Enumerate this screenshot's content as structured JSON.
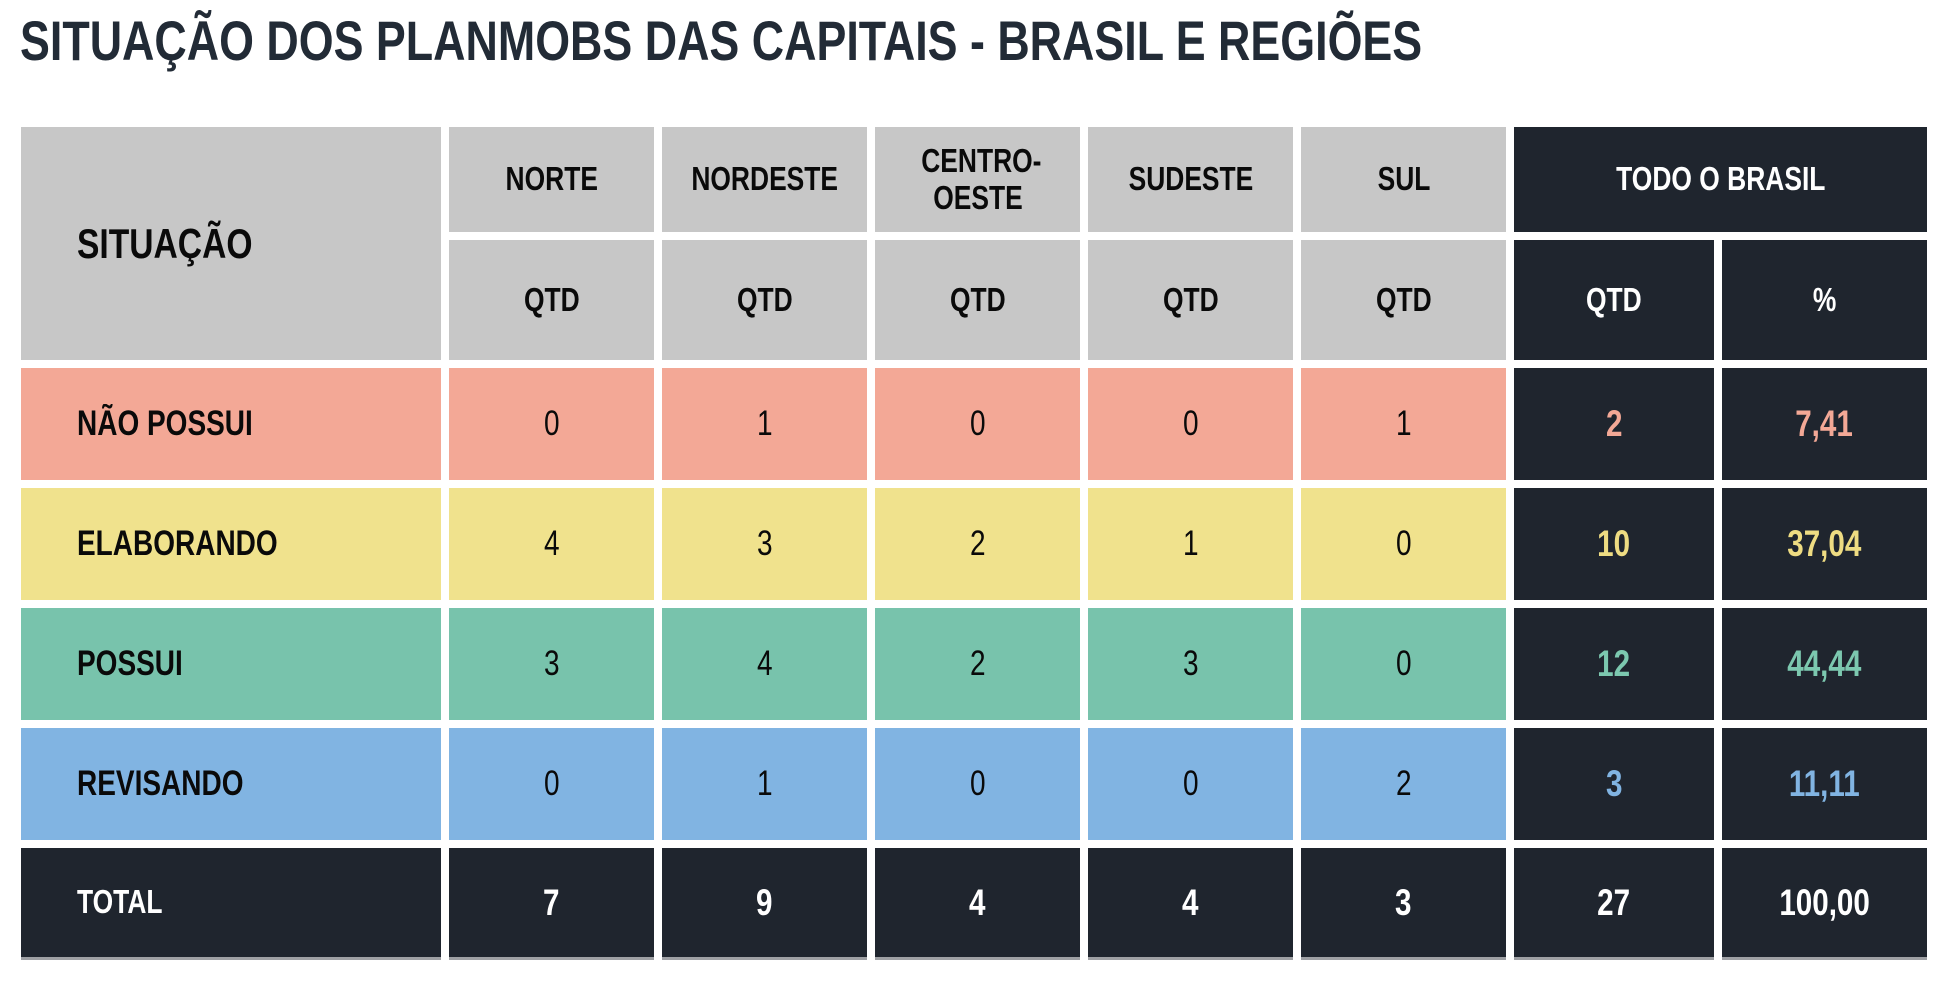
{
  "title": "SITUAÇÃO DOS PLANMOBS DAS CAPITAIS - BRASIL E REGIÕES",
  "colors": {
    "header_gray": "#c7c7c7",
    "dark_navy": "#1f252e",
    "salmon": "#f3a896",
    "yellow": "#f0e28d",
    "green": "#78c3ac",
    "blue": "#81b4e2",
    "title_text": "#222b36",
    "white": "#ffffff"
  },
  "table": {
    "situacao_header": "SITUAÇÃO",
    "region_headers": [
      "NORTE",
      "NORDESTE",
      "CENTRO-OESTE",
      "SUDESTE",
      "SUL"
    ],
    "brasil_header": "TODO O BRASIL",
    "qtd_label": "QTD",
    "pct_label": "%",
    "rows": [
      {
        "label": "NÃO POSSUI",
        "values": [
          0,
          1,
          0,
          0,
          1
        ],
        "qtd": 2,
        "pct": "7,41"
      },
      {
        "label": "ELABORANDO",
        "values": [
          4,
          3,
          2,
          1,
          0
        ],
        "qtd": 10,
        "pct": "37,04"
      },
      {
        "label": "POSSUI",
        "values": [
          3,
          4,
          2,
          3,
          0
        ],
        "qtd": 12,
        "pct": "44,44"
      },
      {
        "label": "REVISANDO",
        "values": [
          0,
          1,
          0,
          0,
          2
        ],
        "qtd": 3,
        "pct": "11,11"
      }
    ],
    "total": {
      "label": "TOTAL",
      "values": [
        7,
        9,
        4,
        4,
        3
      ],
      "qtd": 27,
      "pct": "100,00"
    }
  },
  "chart_data": {
    "type": "table",
    "title": "SITUAÇÃO DOS PLANMOBS DAS CAPITAIS - BRASIL E REGIÕES",
    "columns": [
      "SITUAÇÃO",
      "NORTE QTD",
      "NORDESTE QTD",
      "CENTRO-OESTE QTD",
      "SUDESTE QTD",
      "SUL QTD",
      "TODO O BRASIL QTD",
      "TODO O BRASIL %"
    ],
    "rows": [
      [
        "NÃO POSSUI",
        0,
        1,
        0,
        0,
        1,
        2,
        "7,41"
      ],
      [
        "ELABORANDO",
        4,
        3,
        2,
        1,
        0,
        10,
        "37,04"
      ],
      [
        "POSSUI",
        3,
        4,
        2,
        3,
        0,
        12,
        "44,44"
      ],
      [
        "REVISANDO",
        0,
        1,
        0,
        0,
        2,
        3,
        "11,11"
      ],
      [
        "TOTAL",
        7,
        9,
        4,
        4,
        3,
        27,
        "100,00"
      ]
    ]
  }
}
